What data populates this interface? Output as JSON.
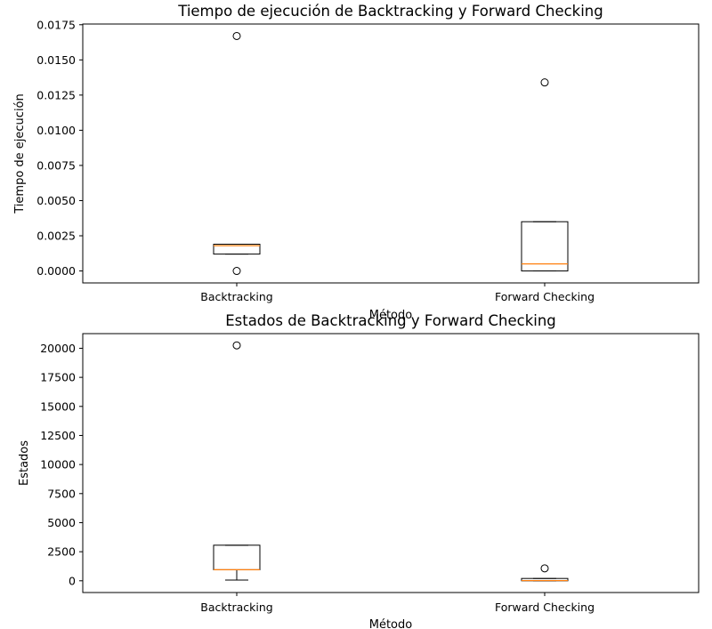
{
  "chart_data": [
    {
      "type": "box",
      "title": "Tiempo de ejecución de Backtracking y Forward Checking",
      "xlabel": "Método",
      "ylabel": "Tiempo de ejecución",
      "ylim": [
        -0.00085,
        0.01755
      ],
      "yticks": [
        "0.0000",
        "0.0025",
        "0.0050",
        "0.0075",
        "0.0100",
        "0.0125",
        "0.0150",
        "0.0175"
      ],
      "categories": [
        "Backtracking",
        "Forward Checking"
      ],
      "boxes": [
        {
          "whisker_low": 0.0012,
          "q1": 0.0012,
          "median": 0.0018,
          "q3": 0.0019,
          "whisker_high": 0.0019,
          "fliers": [
            0.0167,
            0.0
          ]
        },
        {
          "whisker_low": 0.0,
          "q1": 0.0,
          "median": 0.0005,
          "q3": 0.0035,
          "whisker_high": 0.0035,
          "fliers": [
            0.0134
          ]
        }
      ],
      "box_color": "#000000",
      "median_color": "#ff7f0e"
    },
    {
      "type": "box",
      "title": "Estados de Backtracking y Forward Checking",
      "xlabel": "Método",
      "ylabel": "Estados",
      "ylim": [
        -1010,
        21260
      ],
      "yticks": [
        "0",
        "2500",
        "5000",
        "7500",
        "10000",
        "12500",
        "15000",
        "17500",
        "20000"
      ],
      "categories": [
        "Backtracking",
        "Forward Checking"
      ],
      "boxes": [
        {
          "whisker_low": 60,
          "q1": 950,
          "median": 950,
          "q3": 3060,
          "whisker_high": 3060,
          "fliers": [
            20250
          ]
        },
        {
          "whisker_low": 0,
          "q1": 0,
          "median": 20,
          "q3": 200,
          "whisker_high": 200,
          "fliers": [
            1070
          ]
        }
      ],
      "box_color": "#000000",
      "median_color": "#ff7f0e"
    }
  ]
}
